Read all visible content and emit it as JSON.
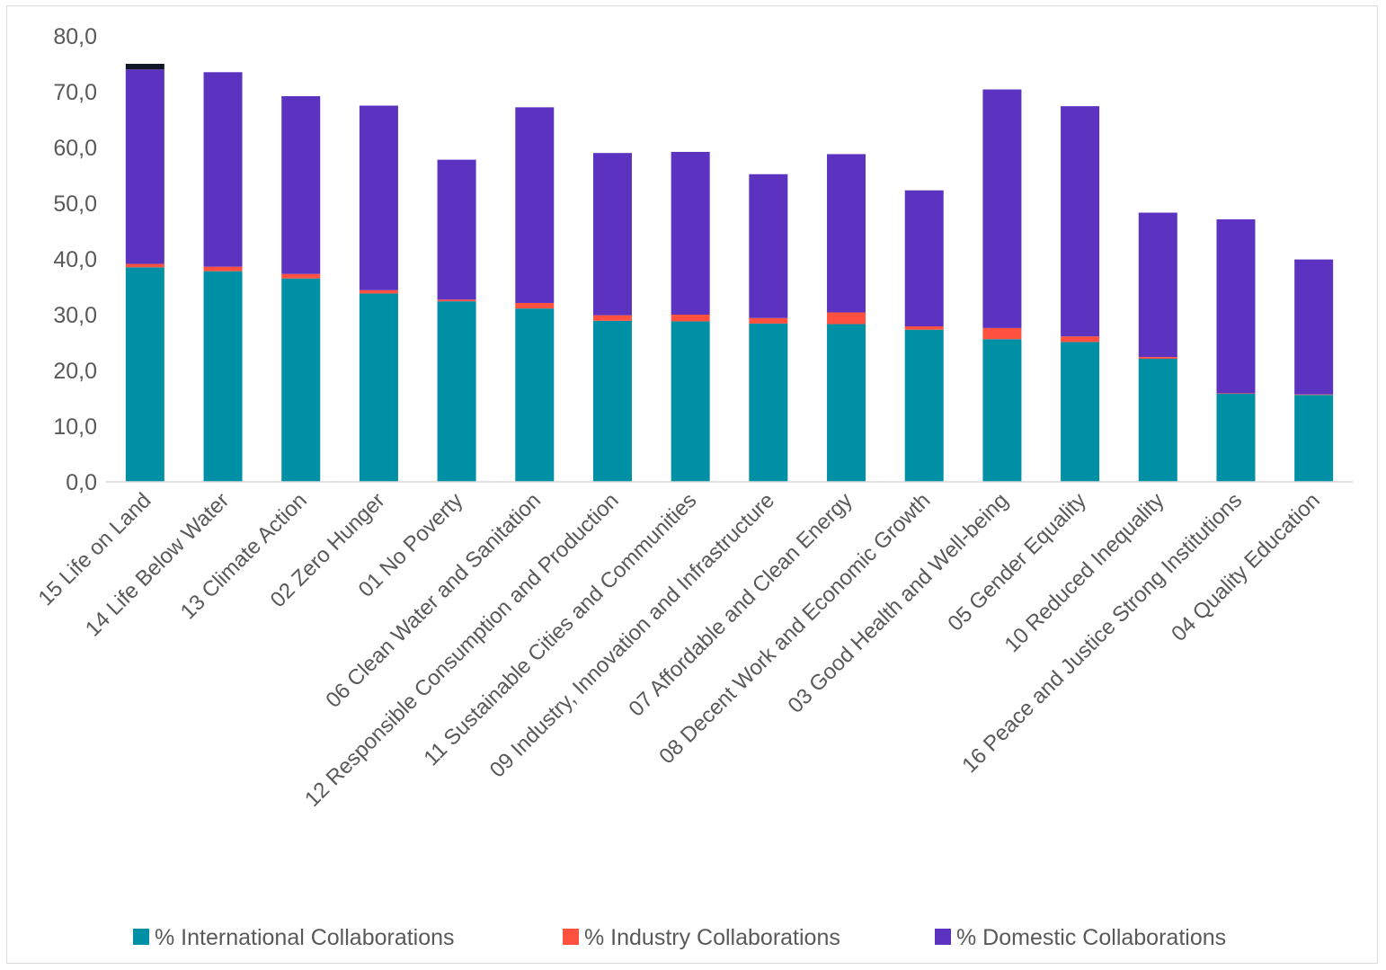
{
  "chart_data": {
    "type": "bar",
    "stacked": true,
    "categories": [
      "15 Life on Land",
      "14 Life Below Water",
      "13 Climate Action",
      "02 Zero Hunger",
      "01 No Poverty",
      "06 Clean Water and Sanitation",
      "12 Responsible Consumption and Production",
      "11 Sustainable Cities and Communities",
      "09 Industry, Innovation and Infrastructure",
      "07 Affordable and Clean Energy",
      "08 Decent Work and Economic Growth",
      "03 Good Health and Well-being",
      "05 Gender Equality",
      "10 Reduced Inequality",
      "16 Peace and Justice Strong Institutions",
      "04 Quality Education"
    ],
    "series": [
      {
        "name": "% International Collaborations",
        "color": "#0090a5",
        "values": [
          38.5,
          37.8,
          36.5,
          33.8,
          32.4,
          31.1,
          28.9,
          28.8,
          28.4,
          28.3,
          27.3,
          25.6,
          25.1,
          22.1,
          15.8,
          15.6
        ]
      },
      {
        "name": "% Industry Collaborations",
        "color": "#ff5040",
        "values": [
          0.6,
          0.8,
          0.8,
          0.6,
          0.3,
          1.0,
          1.0,
          1.2,
          1.0,
          2.1,
          0.6,
          2.0,
          1.0,
          0.3,
          0.1,
          0.1
        ]
      },
      {
        "name": "% Domestic Collaborations",
        "color": "#5c32c0",
        "values": [
          34.9,
          34.9,
          31.9,
          33.1,
          25.1,
          35.1,
          29.1,
          29.2,
          25.8,
          28.4,
          24.4,
          42.8,
          41.3,
          25.9,
          31.2,
          24.2
        ]
      }
    ],
    "extra_segment": {
      "category_index": 0,
      "value": 1.0,
      "color": "#101828"
    },
    "y_ticks": [
      "0,0",
      "10,0",
      "20,0",
      "30,0",
      "40,0",
      "50,0",
      "60,0",
      "70,0",
      "80,0"
    ],
    "ylim": [
      0,
      80
    ],
    "grid": false,
    "legend_position": "bottom"
  }
}
